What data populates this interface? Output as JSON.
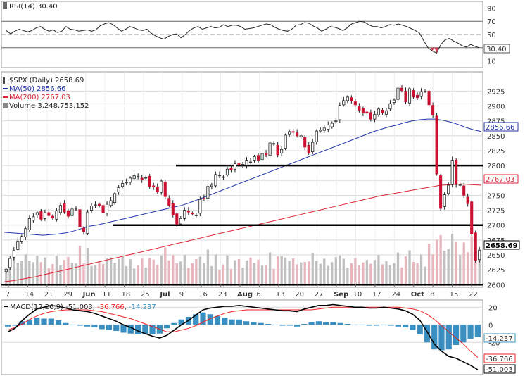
{
  "colors": {
    "up": "#ffffff",
    "down": "#cc1133",
    "wick": "#222222",
    "ma50": "#2233aa",
    "ma200": "#dd2233",
    "volUp": "#c0c0c0",
    "volDown": "#e7b6bd",
    "rsi": "#222222",
    "macdLine": "#000000",
    "signalLine": "#ee2222",
    "histogram": "#3a8fc0",
    "grid": "#d8d8d8",
    "hline": "#000000"
  },
  "legend": {
    "rsi": "RSI(14) 30.40",
    "main_title": "$SPX (Daily) 2658.69",
    "ma50": "MA(50) 2856.66",
    "ma200": "MA(200) 2767.03",
    "volume": "Volume 3,248,753,152",
    "macd_name": "MACD(12,26,9)",
    "macd_v1": "-51.003",
    "macd_v2": "-36.766",
    "macd_v3": "-14.237"
  },
  "tags": {
    "rsi": "30.40",
    "ma50": "2856.66",
    "ma200": "2767.03",
    "price": "2658.69",
    "macd_hist": "-14.237",
    "macd_signal": "-36.766",
    "macd_line": "-51.003"
  },
  "chart_data": [
    {
      "type": "line",
      "title": "RSI(14) 30.40",
      "ylim": [
        0,
        100
      ],
      "y_ticks": [
        10,
        30,
        50,
        70,
        90
      ],
      "reference_lines": [
        30,
        50,
        70
      ],
      "values": [
        56,
        51,
        55,
        58,
        56,
        54,
        56,
        60,
        62,
        58,
        55,
        57,
        53,
        55,
        62,
        58,
        57,
        55,
        56,
        57,
        55,
        57,
        63,
        66,
        68,
        65,
        60,
        55,
        58,
        62,
        60,
        57,
        56,
        58,
        52,
        48,
        45,
        43,
        47,
        50,
        51,
        45,
        50,
        56,
        60,
        62,
        58,
        60,
        62,
        60,
        61,
        65,
        62,
        64,
        64,
        62,
        58,
        59,
        60,
        62,
        64,
        66,
        65,
        61,
        58,
        56,
        55,
        58,
        64,
        65,
        68,
        67,
        63,
        60,
        55,
        58,
        62,
        61,
        59,
        56,
        60,
        66,
        68,
        70,
        69,
        65,
        62,
        62,
        60,
        62,
        65,
        64,
        66,
        64,
        62,
        59,
        56,
        52,
        40,
        30,
        25,
        22,
        35,
        42,
        44,
        40,
        37,
        33,
        31,
        35,
        32,
        30
      ]
    },
    {
      "type": "candlestick",
      "title": "$SPX (Daily) 2658.69",
      "ylim": [
        2598,
        2955
      ],
      "y_ticks": [
        2600,
        2625,
        2650,
        2675,
        2700,
        2725,
        2750,
        2775,
        2800,
        2825,
        2850,
        2875,
        2900,
        2925
      ],
      "x_tick_labels": [
        "7",
        "14",
        "21",
        "29",
        "Jun",
        "11",
        "18",
        "25",
        "Jul",
        "9",
        "16",
        "23",
        "Aug",
        "6",
        "13",
        "20",
        "27",
        "Sep",
        "10",
        "17",
        "24",
        "Oct",
        "8",
        "15",
        "22"
      ],
      "horizontal_lines": [
        2600,
        2700,
        2800
      ],
      "closes": [
        2626,
        2644,
        2658,
        2673,
        2681,
        2694,
        2711,
        2714,
        2721,
        2710,
        2721,
        2716,
        2712,
        2724,
        2733,
        2722,
        2715,
        2727,
        2727,
        2697,
        2689,
        2722,
        2732,
        2734,
        2733,
        2721,
        2735,
        2741,
        2753,
        2763,
        2770,
        2772,
        2779,
        2783,
        2782,
        2776,
        2780,
        2765,
        2764,
        2756,
        2774,
        2748,
        2733,
        2717,
        2701,
        2711,
        2725,
        2722,
        2719,
        2717,
        2743,
        2744,
        2765,
        2767,
        2785,
        2784,
        2781,
        2794,
        2793,
        2803,
        2801,
        2802,
        2809,
        2806,
        2815,
        2809,
        2820,
        2818,
        2838,
        2837,
        2818,
        2827,
        2851,
        2857,
        2856,
        2850,
        2850,
        2831,
        2821,
        2839,
        2858,
        2860,
        2863,
        2868,
        2871,
        2875,
        2901,
        2909,
        2915,
        2909,
        2902,
        2893,
        2888,
        2888,
        2878,
        2886,
        2895,
        2889,
        2892,
        2904,
        2910,
        2930,
        2926,
        2907,
        2929,
        2915,
        2914,
        2924,
        2925,
        2902,
        2885,
        2786,
        2728,
        2751,
        2767,
        2809,
        2768,
        2768,
        2750,
        2736,
        2685,
        2641,
        2658
      ],
      "ma50": [
        2688,
        2687,
        2686,
        2685,
        2684,
        2683,
        2684,
        2685,
        2687,
        2690,
        2694,
        2698,
        2700,
        2703,
        2706,
        2709,
        2712,
        2715,
        2718,
        2721,
        2724,
        2727,
        2730,
        2733,
        2737,
        2742,
        2747,
        2752,
        2757,
        2762,
        2767,
        2772,
        2777,
        2782,
        2787,
        2792,
        2797,
        2802,
        2807,
        2812,
        2817,
        2822,
        2827,
        2832,
        2837,
        2842,
        2847,
        2852,
        2857,
        2861,
        2865,
        2868,
        2872,
        2875,
        2877,
        2878,
        2878,
        2876,
        2873,
        2869,
        2864,
        2860,
        2857
      ],
      "ma200": [
        2605,
        2607,
        2610,
        2613,
        2617,
        2621,
        2625,
        2629,
        2633,
        2637,
        2641,
        2645,
        2649,
        2653,
        2657,
        2661,
        2665,
        2669,
        2673,
        2677,
        2681,
        2685,
        2689,
        2693,
        2697,
        2701,
        2705,
        2709,
        2713,
        2717,
        2721,
        2725,
        2729,
        2733,
        2737,
        2741,
        2745,
        2749,
        2752,
        2755,
        2758,
        2761,
        2764,
        2767,
        2768,
        2769,
        2768,
        2767
      ],
      "ma50_label": "MA(50) 2856.66",
      "ma200_label": "MA(200) 2767.03",
      "volume_label": "Volume 3,248,753,152"
    },
    {
      "type": "line",
      "title": "MACD(12,26,9) -51.003, -36.766, -14.237",
      "ylim": [
        -55,
        25
      ],
      "y_ticks": [
        20,
        0,
        -20
      ],
      "series": [
        {
          "name": "MACD(12,26,9)",
          "values": [
            -8,
            -4,
            5,
            12,
            18,
            20,
            22,
            21,
            19,
            17,
            16,
            15,
            13,
            10,
            7,
            4,
            0,
            -3,
            -7,
            -10,
            -13,
            -15,
            -12,
            -6,
            0,
            5,
            11,
            17,
            19,
            20,
            21,
            21,
            22,
            21,
            20,
            19,
            18,
            17,
            16,
            16,
            15,
            18,
            20,
            22,
            22,
            23,
            22,
            21,
            20,
            20,
            19,
            19,
            20,
            19,
            18,
            16,
            12,
            5,
            -8,
            -22,
            -30,
            -36,
            -38,
            -42,
            -46,
            -51
          ]
        },
        {
          "name": "signal",
          "values": [
            -6,
            -3,
            1,
            6,
            10,
            13,
            15,
            16,
            17,
            17,
            17,
            17,
            16,
            15,
            13,
            11,
            9,
            7,
            4,
            1,
            -2,
            -5,
            -8,
            -8,
            -6,
            -4,
            -1,
            3,
            7,
            10,
            13,
            15,
            16,
            17,
            17,
            17,
            17,
            17,
            17,
            17,
            17,
            17,
            17,
            18,
            19,
            20,
            20,
            20,
            20,
            20,
            20,
            20,
            20,
            20,
            20,
            19,
            18,
            16,
            12,
            6,
            -1,
            -8,
            -15,
            -22,
            -30,
            -37
          ]
        }
      ],
      "histogram": [
        -2,
        -1,
        4,
        6,
        8,
        7,
        7,
        5,
        2,
        0,
        -1,
        -2,
        -3,
        -5,
        -6,
        -7,
        -9,
        -10,
        -11,
        -11,
        -11,
        -10,
        -4,
        2,
        6,
        9,
        12,
        14,
        12,
        10,
        8,
        6,
        6,
        4,
        3,
        2,
        1,
        0,
        -1,
        -1,
        -2,
        1,
        3,
        4,
        3,
        3,
        2,
        1,
        0,
        0,
        -1,
        -1,
        0,
        -1,
        -2,
        -3,
        -6,
        -11,
        -20,
        -28,
        -29,
        -28,
        -23,
        -20,
        -16,
        -14
      ]
    }
  ]
}
